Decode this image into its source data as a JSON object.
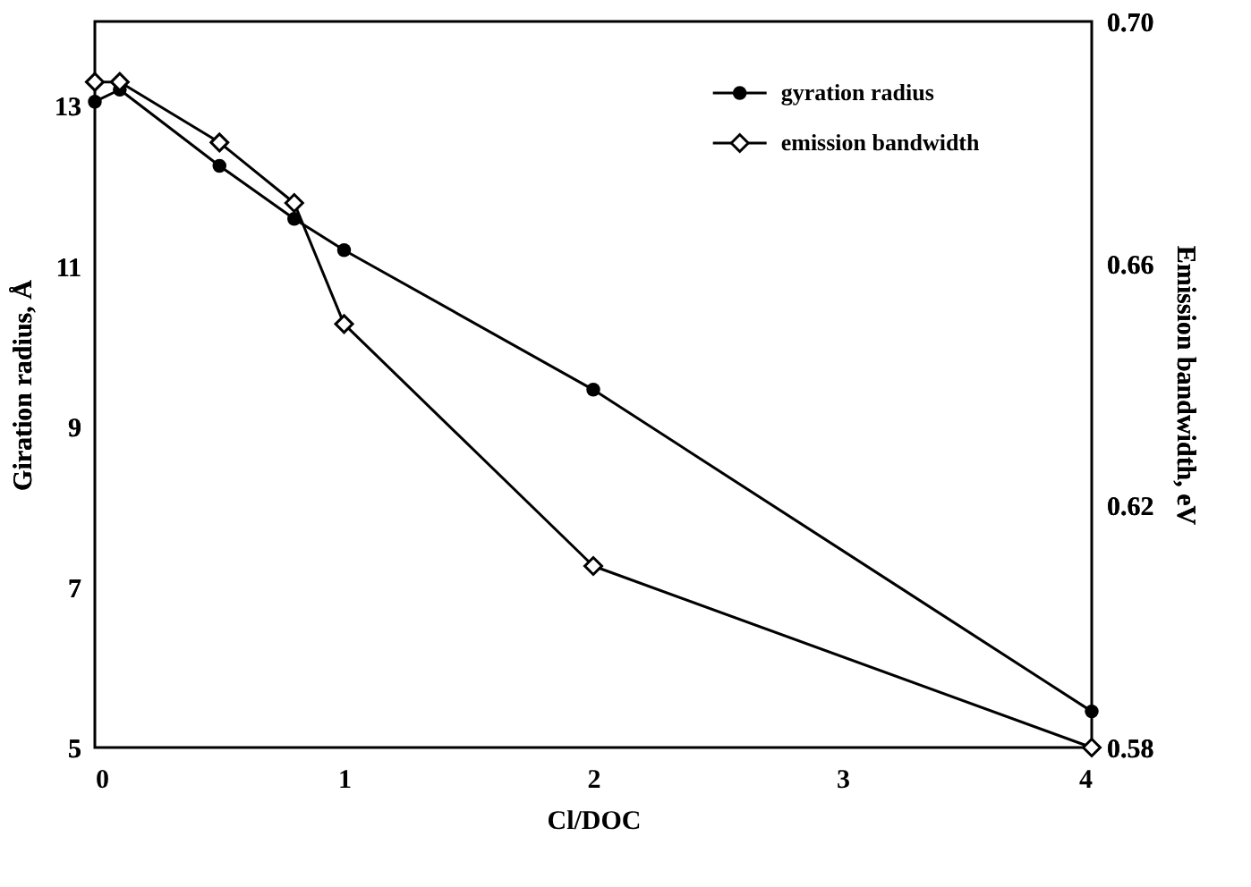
{
  "chart_data": {
    "type": "line",
    "xlabel": "Cl/DOC",
    "ylabel": "Giration radius, Å",
    "y2label": "Emission bandwidth, eV",
    "x": [
      0,
      0.1,
      0.5,
      0.8,
      1,
      2,
      4
    ],
    "xlim": [
      0,
      4
    ],
    "xticks": [
      0,
      1,
      2,
      3,
      4
    ],
    "ylim": [
      5,
      14.05
    ],
    "yticks": [
      5,
      7,
      9,
      11,
      13
    ],
    "y2lim": [
      0.58,
      0.7
    ],
    "y2ticks": [
      0.58,
      0.62,
      0.66,
      {
        "value": 0.7,
        "label": "0.70"
      }
    ],
    "grid": false,
    "legend": "top right",
    "line_style": "solid",
    "series": [
      {
        "name": "gyration radius",
        "color": "#000000",
        "marker": "circle",
        "values": [
          13.05,
          13.2,
          12.25,
          11.59,
          11.2,
          9.46,
          5.45
        ]
      },
      {
        "name": "emission bandwidth",
        "color": "#000000",
        "marker": "diamond",
        "axis": "y2",
        "values": [
          0.69,
          0.69,
          0.68,
          0.67,
          0.65,
          0.61,
          0.58
        ]
      }
    ]
  }
}
